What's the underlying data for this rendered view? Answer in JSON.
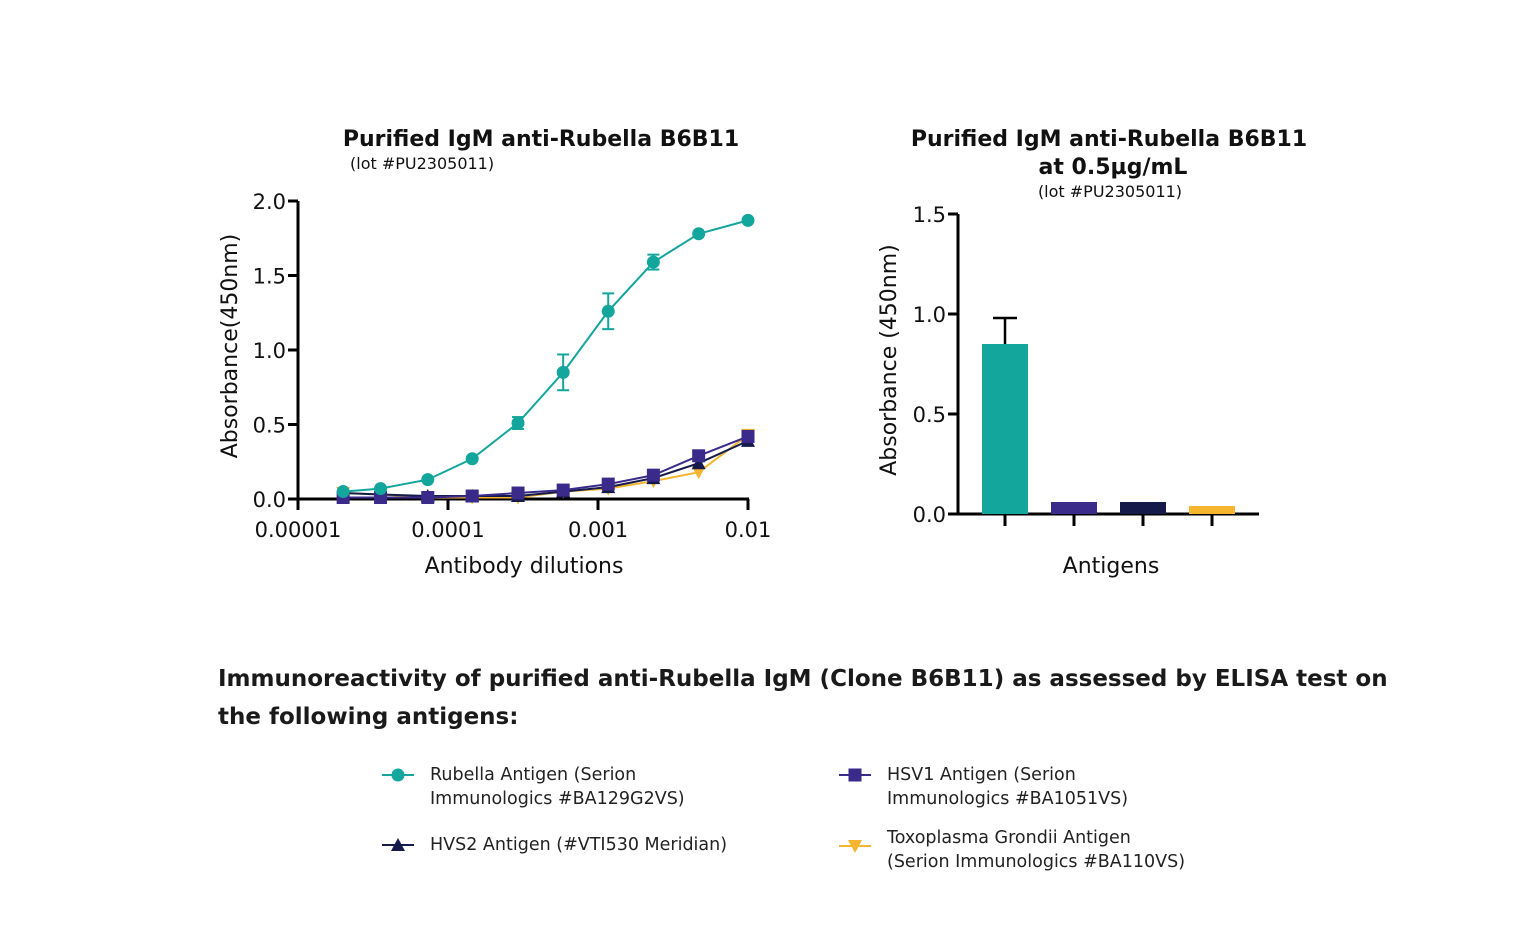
{
  "colors": {
    "rubella": "#12a69c",
    "hsv1": "#3a2a8a",
    "hvs2": "#141a4a",
    "toxo": "#f5b52e"
  },
  "chart_data": [
    {
      "type": "line",
      "title": "Purified IgM anti-Rubella B6B11",
      "subtitle": "(lot #PU2305011)",
      "xlabel": "Antibody dilutions",
      "ylabel": "Absorbance(450nm)",
      "xscale": "log",
      "xlim": [
        1e-05,
        0.01
      ],
      "ylim": [
        0,
        2.0
      ],
      "xticks": [
        "0.00001",
        "0.0001",
        "0.001",
        "0.01"
      ],
      "yticks": [
        "0.0",
        "0.5",
        "1.0",
        "1.5",
        "2.0"
      ],
      "x": [
        2e-05,
        3.55e-05,
        7.33e-05,
        0.000145,
        0.000293,
        0.000586,
        0.00117,
        0.00234,
        0.00469,
        0.01
      ],
      "series": [
        {
          "name": "Rubella Antigen",
          "marker": "circle",
          "color": "#12a69c",
          "values": [
            0.05,
            0.07,
            0.13,
            0.27,
            0.51,
            0.85,
            1.26,
            1.59,
            1.78,
            1.87
          ],
          "errors": [
            0.01,
            0.01,
            0.01,
            0.01,
            0.04,
            0.12,
            0.12,
            0.05,
            0.01,
            0.01
          ]
        },
        {
          "name": "HSV1 Antigen",
          "marker": "square",
          "color": "#3a2a8a",
          "values": [
            0.01,
            0.01,
            0.01,
            0.02,
            0.04,
            0.06,
            0.1,
            0.16,
            0.29,
            0.42
          ]
        },
        {
          "name": "HVS2 Antigen",
          "marker": "triangle-up",
          "color": "#141a4a",
          "values": [
            0.04,
            0.03,
            0.02,
            0.02,
            0.02,
            0.05,
            0.08,
            0.14,
            0.24,
            0.39
          ]
        },
        {
          "name": "Toxoplasma Grondii Antigen",
          "marker": "triangle-down",
          "color": "#f5b52e",
          "values": [
            0.04,
            0.03,
            0.01,
            0.01,
            0.01,
            0.05,
            0.07,
            0.12,
            0.18,
            0.43
          ]
        }
      ]
    },
    {
      "type": "bar",
      "title": "Purified IgM anti-Rubella B6B11",
      "title2": "at 0.5µg/mL",
      "subtitle": "(lot #PU2305011)",
      "xlabel": "Antigens",
      "ylabel": "Absorbance (450nm)",
      "ylim": [
        0,
        1.5
      ],
      "yticks": [
        "0.0",
        "0.5",
        "1.0",
        "1.5"
      ],
      "values": [
        0.85,
        0.06,
        0.06,
        0.04
      ],
      "errors": [
        0.13,
        0,
        0,
        0
      ],
      "colors": [
        "#12a69c",
        "#3a2a8a",
        "#141a4a",
        "#f5b52e"
      ]
    }
  ],
  "caption": "Immunoreactivity of purified anti-Rubella IgM (Clone B6B11) as assessed by ELISA test on the following antigens:",
  "legend": [
    {
      "label": "Rubella Antigen   (Serion\nImmunologics #BA129G2VS)",
      "marker": "circle",
      "color": "#12a69c"
    },
    {
      "label": "HSV1 Antigen   (Serion\nImmunologics #BA1051VS)",
      "marker": "square",
      "color": "#3a2a8a"
    },
    {
      "label": "HVS2 Antigen   (#VTI530 Meridian)",
      "marker": "triangle-up",
      "color": "#141a4a"
    },
    {
      "label": "Toxoplasma Grondii Antigen\n(Serion Immunologics #BA110VS)",
      "marker": "triangle-down",
      "color": "#f5b52e"
    }
  ]
}
